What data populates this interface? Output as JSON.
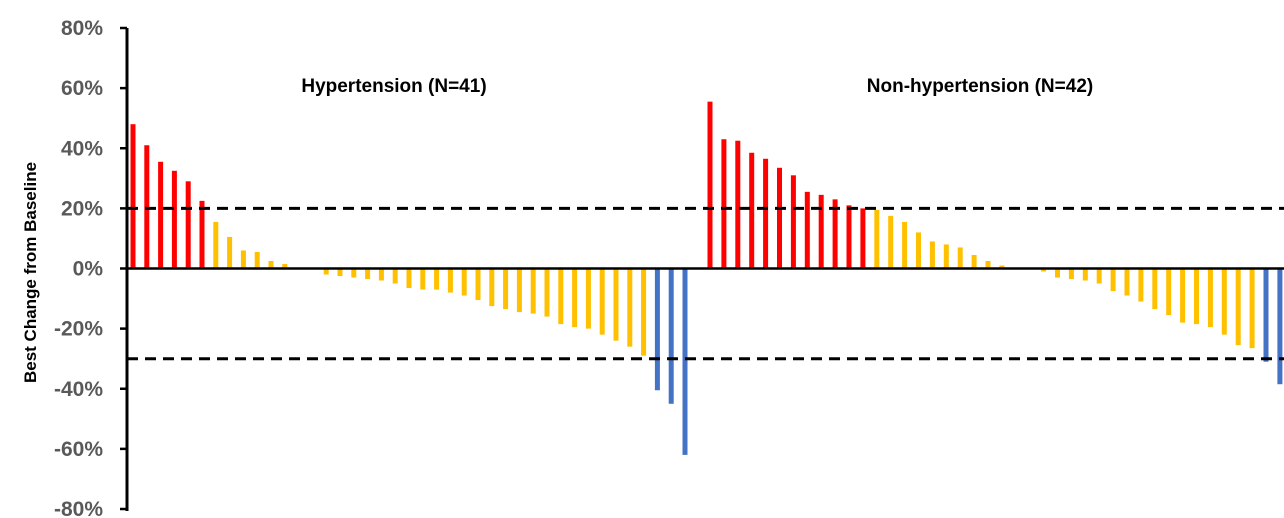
{
  "chart_data": {
    "type": "bar",
    "title": "",
    "xlabel": "",
    "ylabel": "Best Change from Baseline",
    "ylim": [
      -80,
      80
    ],
    "y_ticks": [
      {
        "value": 80,
        "label": "80%"
      },
      {
        "value": 60,
        "label": "60%"
      },
      {
        "value": 40,
        "label": "40%"
      },
      {
        "value": 20,
        "label": "20%"
      },
      {
        "value": 0,
        "label": "0%"
      },
      {
        "value": -20,
        "label": "-20%"
      },
      {
        "value": -40,
        "label": "-40%"
      },
      {
        "value": -60,
        "label": "-60%"
      },
      {
        "value": -80,
        "label": "-80%"
      }
    ],
    "reference_lines": [
      20,
      -30
    ],
    "grid": false,
    "colors": {
      "progression": "#ff0000",
      "stable": "#ffc000",
      "response": "#4472c4",
      "axis": "#000000",
      "tick_text": "#595959"
    },
    "groups": [
      {
        "label": "Hypertension (N=41)",
        "values": [
          48,
          41,
          35.5,
          32.5,
          29,
          22.5,
          15.5,
          10.5,
          6,
          5.5,
          2.5,
          1.5,
          0,
          0,
          -2,
          -2.5,
          -3,
          -3.5,
          -4,
          -5,
          -6.5,
          -7,
          -7,
          -8,
          -9,
          -10.5,
          -12.5,
          -13.5,
          -14.5,
          -15,
          -16,
          -18.5,
          -19.5,
          -20,
          -22,
          -24,
          -26,
          -29,
          -40.5,
          -45,
          -62
        ],
        "categories": [
          "progression",
          "progression",
          "progression",
          "progression",
          "progression",
          "progression",
          "stable",
          "stable",
          "stable",
          "stable",
          "stable",
          "stable",
          "stable",
          "stable",
          "stable",
          "stable",
          "stable",
          "stable",
          "stable",
          "stable",
          "stable",
          "stable",
          "stable",
          "stable",
          "stable",
          "stable",
          "stable",
          "stable",
          "stable",
          "stable",
          "stable",
          "stable",
          "stable",
          "stable",
          "stable",
          "stable",
          "stable",
          "stable",
          "response",
          "response",
          "response"
        ]
      },
      {
        "label": "Non-hypertension (N=42)",
        "values": [
          55.5,
          43,
          42.5,
          38.5,
          36.5,
          33.5,
          31,
          25.5,
          24.5,
          23,
          21,
          20,
          19.5,
          17.5,
          15.5,
          12,
          9,
          8,
          7,
          4.5,
          2.5,
          1,
          0,
          0,
          -1,
          -3,
          -3.5,
          -4,
          -5,
          -7.5,
          -9,
          -11,
          -13.5,
          -15.5,
          -18,
          -18.5,
          -19.5,
          -22,
          -25.5,
          -26.5,
          -31,
          -38.5
        ],
        "categories": [
          "progression",
          "progression",
          "progression",
          "progression",
          "progression",
          "progression",
          "progression",
          "progression",
          "progression",
          "progression",
          "progression",
          "progression",
          "stable",
          "stable",
          "stable",
          "stable",
          "stable",
          "stable",
          "stable",
          "stable",
          "stable",
          "stable",
          "stable",
          "stable",
          "stable",
          "stable",
          "stable",
          "stable",
          "stable",
          "stable",
          "stable",
          "stable",
          "stable",
          "stable",
          "stable",
          "stable",
          "stable",
          "stable",
          "stable",
          "stable",
          "response",
          "response"
        ]
      }
    ]
  }
}
